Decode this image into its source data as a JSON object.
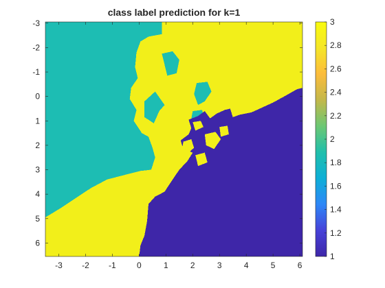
{
  "chart_data": {
    "type": "heatmap",
    "title": "class label prediction for k=1",
    "xlabel": "",
    "ylabel": "",
    "xlim": [
      -3.5,
      6.1
    ],
    "ylim": [
      -3.05,
      6.55
    ],
    "y_direction": "reversed (top = -3)",
    "xticks": [
      -3,
      -2,
      -1,
      0,
      1,
      2,
      3,
      4,
      5,
      6
    ],
    "yticks": [
      -3,
      -2,
      -1,
      0,
      1,
      2,
      3,
      4,
      5,
      6
    ],
    "grid": false,
    "colorbar": {
      "range": [
        1,
        3
      ],
      "ticks": [
        1,
        1.2,
        1.4,
        1.6,
        1.8,
        2,
        2.2,
        2.4,
        2.6,
        2.8,
        3
      ],
      "tick_labels": [
        "1",
        "1.2",
        "1.4",
        "1.6",
        "1.8",
        "2",
        "2.2",
        "2.4",
        "2.6",
        "2.8",
        "3"
      ],
      "colormap": "parula",
      "stops": [
        "#3e26a8",
        "#4742d9",
        "#2e87f7",
        "#0dafd7",
        "#20bfab",
        "#6cc773",
        "#c3b84a",
        "#fcbc3c",
        "#f5e628",
        "#f9fb0e"
      ]
    },
    "classes": [
      {
        "value": 1,
        "color": "#3e26a8"
      },
      {
        "value": 2,
        "color": "#1dbdb3"
      },
      {
        "value": 3,
        "color": "#f2ef1a"
      }
    ],
    "regions": [
      {
        "class": 2,
        "polygon": [
          [
            -3.5,
            -3.05
          ],
          [
            0.85,
            -3.05
          ],
          [
            0.85,
            -2.55
          ],
          [
            0.35,
            -2.45
          ],
          [
            0.05,
            -2.25
          ],
          [
            -0.1,
            -1.8
          ],
          [
            -0.15,
            -1.2
          ],
          [
            -0.05,
            -0.75
          ],
          [
            -0.3,
            -0.35
          ],
          [
            -0.35,
            0.1
          ],
          [
            -0.1,
            0.55
          ],
          [
            -0.2,
            1.0
          ],
          [
            0.1,
            1.5
          ],
          [
            0.35,
            1.65
          ],
          [
            0.5,
            2.1
          ],
          [
            0.6,
            2.5
          ],
          [
            0.45,
            3.0
          ],
          [
            0.05,
            3.05
          ],
          [
            -0.5,
            3.2
          ],
          [
            -1.2,
            3.4
          ],
          [
            -1.8,
            3.75
          ],
          [
            -2.35,
            4.15
          ],
          [
            -2.9,
            4.55
          ],
          [
            -3.5,
            4.95
          ]
        ]
      },
      {
        "class": 2,
        "polygon": [
          [
            -1.1,
            1.65
          ],
          [
            -0.6,
            1.5
          ],
          [
            -0.3,
            1.6
          ],
          [
            -0.45,
            1.9
          ],
          [
            -0.95,
            1.95
          ],
          [
            -1.25,
            2.0
          ]
        ]
      },
      {
        "class": 2,
        "polygon": [
          [
            0.85,
            -1.75
          ],
          [
            1.25,
            -1.85
          ],
          [
            1.5,
            -1.5
          ],
          [
            1.4,
            -0.95
          ],
          [
            1.05,
            -0.85
          ],
          [
            0.95,
            -1.3
          ]
        ]
      },
      {
        "class": 2,
        "polygon": [
          [
            0.2,
            0.2
          ],
          [
            0.6,
            -0.2
          ],
          [
            0.95,
            0.35
          ],
          [
            0.75,
            0.6
          ],
          [
            0.55,
            1.1
          ],
          [
            0.2,
            0.85
          ]
        ]
      },
      {
        "class": 2,
        "polygon": [
          [
            2.15,
            -0.55
          ],
          [
            2.55,
            -0.6
          ],
          [
            2.7,
            -0.2
          ],
          [
            2.45,
            0.2
          ],
          [
            2.2,
            0.35
          ],
          [
            2.05,
            -0.1
          ]
        ]
      },
      {
        "class": 2,
        "polygon": [
          [
            2.0,
            0.6
          ],
          [
            2.35,
            0.55
          ],
          [
            2.45,
            0.95
          ],
          [
            2.15,
            1.1
          ],
          [
            1.95,
            0.9
          ]
        ]
      },
      {
        "class": 1,
        "polygon": [
          [
            6.1,
            -0.35
          ],
          [
            6.1,
            6.55
          ],
          [
            0.0,
            6.55
          ],
          [
            0.05,
            6.1
          ],
          [
            0.2,
            5.7
          ],
          [
            0.3,
            5.1
          ],
          [
            0.35,
            4.4
          ],
          [
            0.6,
            4.1
          ],
          [
            0.95,
            3.9
          ],
          [
            1.25,
            3.4
          ],
          [
            1.5,
            3.0
          ],
          [
            1.8,
            2.65
          ],
          [
            2.0,
            2.3
          ],
          [
            1.65,
            2.15
          ],
          [
            1.55,
            1.8
          ],
          [
            1.85,
            1.55
          ],
          [
            1.95,
            1.3
          ],
          [
            1.85,
            0.95
          ],
          [
            2.2,
            0.8
          ],
          [
            2.45,
            0.6
          ],
          [
            2.65,
            0.9
          ],
          [
            2.9,
            0.7
          ],
          [
            3.2,
            0.55
          ],
          [
            3.4,
            0.5
          ],
          [
            3.5,
            0.85
          ],
          [
            3.75,
            0.75
          ],
          [
            4.2,
            0.65
          ],
          [
            4.6,
            0.45
          ],
          [
            5.0,
            0.25
          ],
          [
            5.5,
            -0.05
          ],
          [
            5.9,
            -0.3
          ]
        ]
      },
      {
        "class": 3,
        "polygon": [
          [
            2.0,
            1.05
          ],
          [
            2.3,
            1.0
          ],
          [
            2.4,
            1.25
          ],
          [
            2.1,
            1.4
          ]
        ]
      },
      {
        "class": 3,
        "polygon": [
          [
            1.65,
            1.85
          ],
          [
            1.95,
            1.75
          ],
          [
            2.05,
            2.1
          ],
          [
            1.85,
            2.3
          ],
          [
            1.6,
            2.2
          ]
        ]
      },
      {
        "class": 3,
        "polygon": [
          [
            2.45,
            1.55
          ],
          [
            2.85,
            1.45
          ],
          [
            3.05,
            1.75
          ],
          [
            2.8,
            2.15
          ],
          [
            2.5,
            2.0
          ]
        ]
      },
      {
        "class": 3,
        "polygon": [
          [
            3.0,
            1.25
          ],
          [
            3.3,
            1.2
          ],
          [
            3.35,
            1.55
          ],
          [
            3.05,
            1.65
          ]
        ]
      },
      {
        "class": 3,
        "polygon": [
          [
            2.1,
            2.4
          ],
          [
            2.45,
            2.3
          ],
          [
            2.55,
            2.7
          ],
          [
            2.2,
            2.85
          ]
        ]
      },
      {
        "class": 1,
        "polygon": [
          [
            3.25,
            2.65
          ],
          [
            3.55,
            2.55
          ],
          [
            3.85,
            2.7
          ],
          [
            3.8,
            3.0
          ],
          [
            3.5,
            3.0
          ]
        ]
      }
    ]
  }
}
